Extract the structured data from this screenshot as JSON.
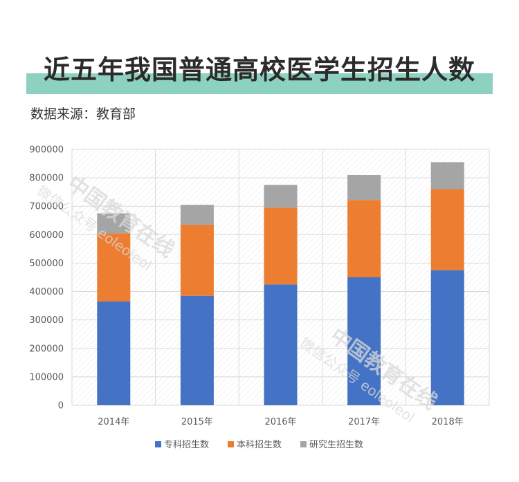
{
  "title": "近五年我国普通高校医学生招生人数",
  "source": "数据来源：教育部",
  "colors": {
    "accent_band": "#8dd2c0",
    "专科": "#4472c4",
    "本科": "#ed7d31",
    "研究生": "#a5a5a5"
  },
  "watermark": {
    "main": "中国教育在线",
    "sub": "微信公众号 eoleoleol"
  },
  "chart_data": {
    "type": "bar",
    "stacked": true,
    "categories": [
      "2014年",
      "2015年",
      "2016年",
      "2017年",
      "2018年"
    ],
    "series": [
      {
        "name": "专科招生数",
        "values": [
          365000,
          385000,
          425000,
          450000,
          475000
        ]
      },
      {
        "name": "本科招生数",
        "values": [
          240000,
          250000,
          270000,
          272000,
          285000
        ]
      },
      {
        "name": "研究生招生数",
        "values": [
          70000,
          70000,
          80000,
          88000,
          95000
        ]
      }
    ],
    "y_ticks": [
      "0",
      "100000",
      "200000",
      "300000",
      "400000",
      "500000",
      "600000",
      "700000",
      "800000",
      "900000"
    ],
    "ylim": [
      0,
      900000
    ],
    "legend": "bottom",
    "grid": true
  }
}
